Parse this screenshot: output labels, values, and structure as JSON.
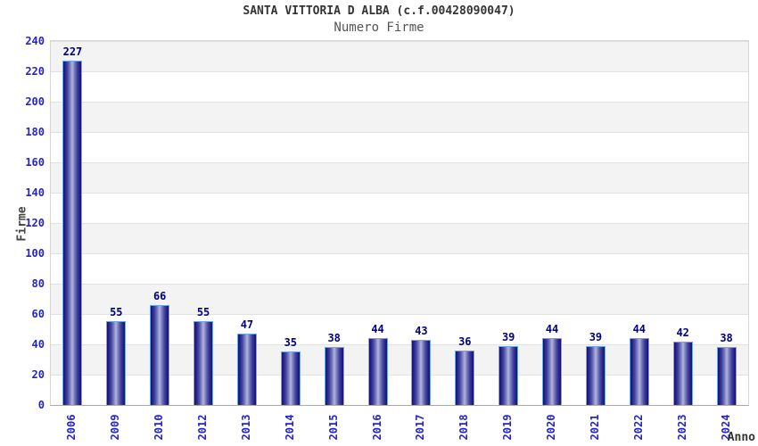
{
  "header": {
    "title": "SANTA VITTORIA D ALBA (c.f.00428090047)",
    "subtitle": "Numero Firme"
  },
  "chart_data": {
    "type": "bar",
    "title": "SANTA VITTORIA D ALBA (c.f.00428090047)",
    "subtitle": "Numero Firme",
    "xlabel": "Anno",
    "ylabel": "Firme",
    "categories": [
      "2006",
      "2009",
      "2010",
      "2012",
      "2013",
      "2014",
      "2015",
      "2016",
      "2017",
      "2018",
      "2019",
      "2020",
      "2021",
      "2022",
      "2023",
      "2024"
    ],
    "values": [
      227,
      55,
      66,
      55,
      47,
      35,
      38,
      44,
      43,
      36,
      39,
      44,
      39,
      44,
      42,
      38
    ],
    "ylim": [
      0,
      240
    ],
    "ytick_step": 20,
    "ytick_values": [
      0,
      20,
      40,
      60,
      80,
      100,
      120,
      140,
      160,
      180,
      200,
      220,
      240
    ],
    "grid": "horizontal-bands-alternating",
    "legend_position": "none",
    "value_labels_shown": true
  },
  "colors": {
    "title_text": "#333333",
    "subtitle_text": "#555555",
    "tick_label": "#2424cc",
    "value_label": "#000082",
    "axis_title": "#444444",
    "bar_edge_dark": "#14136e",
    "bar_center_light": "#b2b6dc",
    "bar_border": "#74a6e6",
    "band_gray": "#f3f3f3",
    "band_white": "#ffffff",
    "gridline": "#e2e2e2",
    "plot_border": "#d6d6d6"
  }
}
